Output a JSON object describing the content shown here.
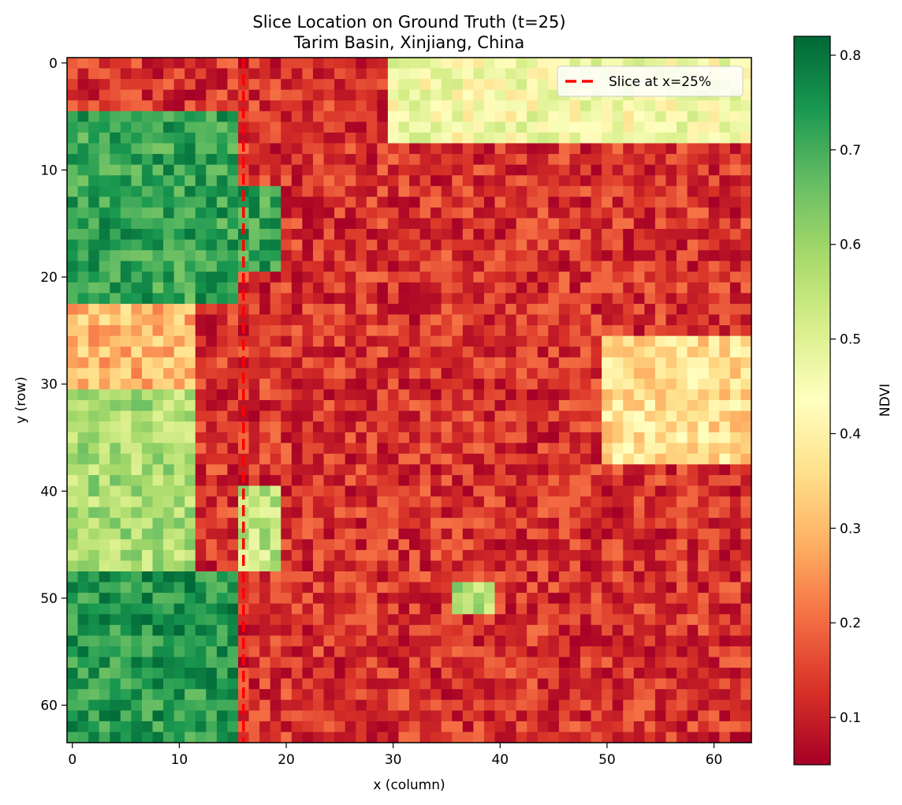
{
  "chart_data": {
    "type": "heatmap",
    "title": "Slice Location on Ground Truth (t=25)",
    "subtitle": "Tarim Basin, Xinjiang, China",
    "xlabel": "x (column)",
    "ylabel": "y (row)",
    "x_ticks": [
      "0",
      "10",
      "20",
      "30",
      "40",
      "50",
      "60"
    ],
    "y_ticks": [
      "0",
      "10",
      "20",
      "30",
      "40",
      "50",
      "60"
    ],
    "grid_size": [
      64,
      64
    ],
    "xlim": [
      -0.5,
      63.5
    ],
    "ylim": [
      63.5,
      -0.5
    ],
    "y_axis_inverted": true,
    "grid": false,
    "colormap": "RdYlGn",
    "colorbar": {
      "label": "NDVI",
      "range": [
        0.05,
        0.82
      ],
      "ticks": [
        "0.1",
        "0.2",
        "0.3",
        "0.4",
        "0.5",
        "0.6",
        "0.7",
        "0.8"
      ]
    },
    "slice_line": {
      "x": 16,
      "color": "#ff0000",
      "style": "dashed",
      "legend_label": "Slice at x=25%"
    },
    "legend": {
      "placement": "top-right"
    },
    "regions": [
      {
        "x": [
          0,
          16
        ],
        "y": [
          5,
          23
        ],
        "ndvi": 0.72
      },
      {
        "x": [
          0,
          12
        ],
        "y": [
          23,
          31
        ],
        "ndvi": 0.3
      },
      {
        "x": [
          0,
          12
        ],
        "y": [
          31,
          48
        ],
        "ndvi": 0.58
      },
      {
        "x": [
          0,
          16
        ],
        "y": [
          48,
          64
        ],
        "ndvi": 0.74
      },
      {
        "x": [
          16,
          20
        ],
        "y": [
          12,
          20
        ],
        "ndvi": 0.72
      },
      {
        "x": [
          16,
          24
        ],
        "y": [
          40,
          48
        ],
        "ndvi": 0.55
      },
      {
        "x": [
          30,
          64
        ],
        "y": [
          0,
          8
        ],
        "ndvi": 0.45
      },
      {
        "x": [
          20,
          64
        ],
        "y": [
          8,
          64
        ],
        "ndvi": 0.13
      },
      {
        "x": [
          50,
          64
        ],
        "y": [
          26,
          38
        ],
        "ndvi": 0.36
      },
      {
        "x": [
          36,
          40
        ],
        "y": [
          49,
          52
        ],
        "ndvi": 0.58
      }
    ]
  }
}
